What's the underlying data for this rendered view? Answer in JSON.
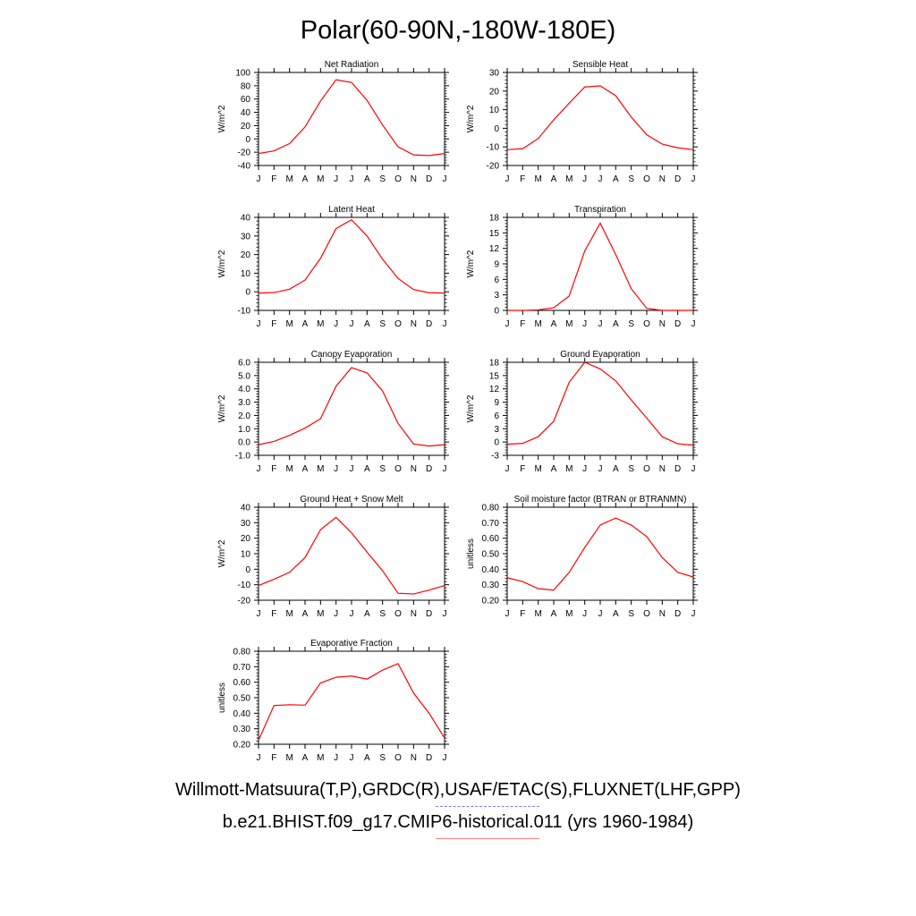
{
  "title": "Polar(60-90N,-180W-180E)",
  "legend": {
    "obs_label": "Willmott-Matsuura(T,P),GRDC(R),USAF/ETAC(S),FLUXNET(LHF,GPP)",
    "obs_color": "#6b6bff",
    "model_label": "b.e21.BHIST.f09_g17.CMIP6-historical.011 (yrs 1960-1984)",
    "model_color": "#ff0000"
  },
  "months": [
    "J",
    "F",
    "M",
    "A",
    "M",
    "J",
    "J",
    "A",
    "S",
    "O",
    "N",
    "D",
    "J"
  ],
  "line_color": "#ff0000",
  "chart_data": [
    {
      "type": "line",
      "title": "Net Radiation",
      "ylabel": "W/m^2",
      "ylim": [
        -40,
        100
      ],
      "yticks": [
        "-40",
        "-20",
        "0",
        "20",
        "40",
        "60",
        "80",
        "100"
      ],
      "series": [
        {
          "values": [
            -22,
            -18,
            -7,
            18,
            57,
            89,
            85,
            58,
            21,
            -12,
            -24,
            -25,
            -22
          ]
        }
      ]
    },
    {
      "type": "line",
      "title": "Sensible Heat",
      "ylabel": "W/m^2",
      "ylim": [
        -20,
        30
      ],
      "yticks": [
        "-20",
        "-10",
        "0",
        "10",
        "20",
        "30"
      ],
      "series": [
        {
          "values": [
            -11.5,
            -11,
            -5.5,
            4.5,
            13.5,
            22.2,
            22.8,
            17.5,
            6,
            -3.5,
            -8.5,
            -10.5,
            -11.5
          ]
        }
      ]
    },
    {
      "type": "line",
      "title": "Latent Heat",
      "ylabel": "W/m^2",
      "ylim": [
        -10,
        40
      ],
      "yticks": [
        "-10",
        "0",
        "10",
        "20",
        "30",
        "40"
      ],
      "series": [
        {
          "values": [
            -0.7,
            -0.4,
            1.4,
            6.3,
            18,
            34,
            38.7,
            30,
            17.5,
            7.2,
            1.2,
            -0.5,
            -0.7
          ]
        }
      ]
    },
    {
      "type": "line",
      "title": "Transpiration",
      "ylabel": "W/m^2",
      "ylim": [
        0,
        18
      ],
      "yticks": [
        "0",
        "3",
        "6",
        "9",
        "12",
        "15",
        "18"
      ],
      "series": [
        {
          "values": [
            0,
            0,
            0.1,
            0.5,
            2.8,
            11.5,
            16.9,
            10.8,
            4.2,
            0.4,
            0,
            0,
            0
          ]
        }
      ]
    },
    {
      "type": "line",
      "title": "Canopy Evaporation",
      "ylabel": "W/m^2",
      "ylim": [
        -1,
        6
      ],
      "yticks": [
        "-1.0",
        "0.0",
        "1.0",
        "2.0",
        "3.0",
        "4.0",
        "5.0",
        "6.0"
      ],
      "series": [
        {
          "values": [
            -0.2,
            0.05,
            0.5,
            1.05,
            1.75,
            4.2,
            5.6,
            5.2,
            3.85,
            1.4,
            -0.15,
            -0.3,
            -0.2
          ]
        }
      ]
    },
    {
      "type": "line",
      "title": "Ground Evaporation",
      "ylabel": "W/m^2",
      "ylim": [
        -3,
        18
      ],
      "yticks": [
        "-3",
        "0",
        "3",
        "6",
        "9",
        "12",
        "15",
        "18"
      ],
      "series": [
        {
          "values": [
            -0.5,
            -0.3,
            1.2,
            4.7,
            13.5,
            18,
            16.5,
            13.8,
            9.5,
            5.4,
            1.2,
            -0.4,
            -0.7
          ]
        }
      ]
    },
    {
      "type": "line",
      "title": "Ground Heat + Snow Melt",
      "ylabel": "W/m^2",
      "ylim": [
        -20,
        40
      ],
      "yticks": [
        "-20",
        "-10",
        "0",
        "10",
        "20",
        "30",
        "40"
      ],
      "series": [
        {
          "values": [
            -10.5,
            -6.5,
            -2,
            7.5,
            25.5,
            33.5,
            23.5,
            11,
            -1,
            -15.5,
            -16,
            -13.5,
            -10.5
          ]
        }
      ]
    },
    {
      "type": "line",
      "title": "Soil moisture factor (BTRAN or BTRANMN)",
      "ylabel": "unitless",
      "ylim": [
        0.2,
        0.8
      ],
      "yticks": [
        "0.20",
        "0.30",
        "0.40",
        "0.50",
        "0.60",
        "0.70",
        "0.80"
      ],
      "series": [
        {
          "values": [
            0.345,
            0.32,
            0.275,
            0.265,
            0.38,
            0.54,
            0.685,
            0.73,
            0.685,
            0.61,
            0.475,
            0.38,
            0.35
          ]
        }
      ]
    },
    {
      "type": "line",
      "title": "Evaporative Fraction",
      "ylabel": "unitless",
      "ylim": [
        0.2,
        0.8
      ],
      "yticks": [
        "0.20",
        "0.30",
        "0.40",
        "0.50",
        "0.60",
        "0.70",
        "0.80"
      ],
      "series": [
        {
          "values": [
            0.225,
            0.45,
            0.455,
            0.452,
            0.595,
            0.632,
            0.64,
            0.62,
            0.678,
            0.72,
            0.53,
            0.4,
            0.24
          ]
        }
      ]
    }
  ]
}
